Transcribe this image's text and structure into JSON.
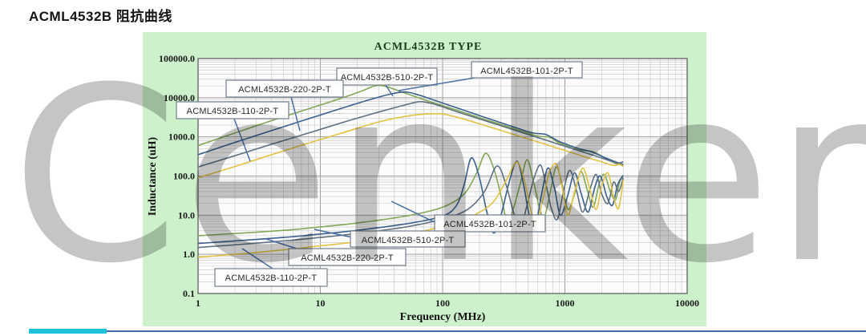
{
  "page": {
    "title": "ACML4532B 阻抗曲线"
  },
  "watermark": {
    "text": "Cenker"
  },
  "colors": {
    "panel_background": "#cdf2cb",
    "plot_background": "#fcfcfc",
    "footer_line": "#3d6ea6",
    "footer_accent": "#1ec1dc",
    "leader_line": "#4a6fa5"
  },
  "chart_data": {
    "type": "line",
    "title": "ACML4532B TYPE",
    "xlabel": "Frequency (MHz)",
    "ylabel": "Inductance (uH)",
    "grid": true,
    "legend_position": "none",
    "x_axis": {
      "scale": "log",
      "min": 1,
      "max": 10000,
      "ticks": [
        "1",
        "10",
        "100",
        "1000",
        "10000"
      ]
    },
    "y_axis": {
      "scale": "log",
      "min": 0.1,
      "max": 100000,
      "ticks": [
        "100000.0",
        "10000.0",
        "1000.0",
        "100.0",
        "10.0",
        "1.0",
        "0.1"
      ]
    },
    "callouts_top": [
      {
        "label": "ACML4532B-510-2P-T"
      },
      {
        "label": "ACML4532B-101-2P-T"
      },
      {
        "label": "ACML4532B-220-2P-T"
      },
      {
        "label": "ACML4532B-110-2P-T"
      }
    ],
    "callouts_bottom": [
      {
        "label": "ACML4532B-101-2P-T"
      },
      {
        "label": "ACML4532B-510-2P-T"
      },
      {
        "label": "ACML4532B-220-2P-T"
      },
      {
        "label": "ACML4532B-110-2P-T"
      }
    ],
    "series": [
      {
        "name": "ACML4532B-101-2P-T",
        "group": "upper",
        "color": "#84a757",
        "points": [
          [
            1,
            600
          ],
          [
            2,
            1250
          ],
          [
            4,
            2600
          ],
          [
            8,
            5200
          ],
          [
            15,
            9800
          ],
          [
            22,
            15000
          ],
          [
            28,
            20000
          ],
          [
            34,
            19500
          ],
          [
            45,
            14500
          ],
          [
            70,
            9000
          ],
          [
            100,
            6300
          ],
          [
            200,
            3100
          ],
          [
            400,
            1550
          ],
          [
            600,
            1050
          ],
          [
            750,
            980
          ],
          [
            900,
            700
          ],
          [
            1300,
            460
          ],
          [
            1700,
            420
          ],
          [
            2200,
            270
          ],
          [
            2600,
            210
          ],
          [
            3000,
            185
          ]
        ]
      },
      {
        "name": "ACML4532B-510-2P-T",
        "group": "upper",
        "color": "#3a5f8e",
        "points": [
          [
            1,
            350
          ],
          [
            2,
            720
          ],
          [
            4,
            1450
          ],
          [
            8,
            2900
          ],
          [
            15,
            5400
          ],
          [
            25,
            8800
          ],
          [
            38,
            12500
          ],
          [
            50,
            14000
          ],
          [
            65,
            11500
          ],
          [
            100,
            7300
          ],
          [
            200,
            3500
          ],
          [
            400,
            1700
          ],
          [
            550,
            1250
          ],
          [
            700,
            1150
          ],
          [
            900,
            760
          ],
          [
            1300,
            500
          ],
          [
            1600,
            430
          ],
          [
            2100,
            300
          ],
          [
            2600,
            230
          ],
          [
            3000,
            195
          ]
        ]
      },
      {
        "name": "ACML4532B-220-2P-T",
        "group": "upper",
        "color": "#5f7182",
        "points": [
          [
            1,
            170
          ],
          [
            2,
            330
          ],
          [
            4,
            650
          ],
          [
            8,
            1250
          ],
          [
            15,
            2300
          ],
          [
            30,
            4300
          ],
          [
            50,
            6600
          ],
          [
            65,
            7900
          ],
          [
            85,
            6900
          ],
          [
            130,
            4400
          ],
          [
            250,
            2300
          ],
          [
            500,
            1150
          ],
          [
            800,
            720
          ],
          [
            1200,
            480
          ],
          [
            1700,
            340
          ],
          [
            2200,
            260
          ],
          [
            2700,
            215
          ],
          [
            3000,
            230
          ]
        ]
      },
      {
        "name": "ACML4532B-110-2P-T",
        "group": "upper",
        "color": "#e2c345",
        "points": [
          [
            1,
            90
          ],
          [
            2,
            175
          ],
          [
            4,
            350
          ],
          [
            8,
            690
          ],
          [
            15,
            1250
          ],
          [
            30,
            2400
          ],
          [
            55,
            3500
          ],
          [
            90,
            3900
          ],
          [
            120,
            3400
          ],
          [
            200,
            2150
          ],
          [
            400,
            1100
          ],
          [
            700,
            640
          ],
          [
            1000,
            450
          ],
          [
            1500,
            300
          ],
          [
            2000,
            230
          ],
          [
            2500,
            185
          ],
          [
            2800,
            200
          ],
          [
            3000,
            175
          ]
        ]
      },
      {
        "name": "ACML4532B-101-2P-T",
        "group": "lower",
        "color": "#84a757",
        "points": [
          [
            1,
            3.0
          ],
          [
            2,
            3.4
          ],
          [
            5,
            4.1
          ],
          [
            10,
            5.0
          ],
          [
            20,
            6.3
          ],
          [
            50,
            9.5
          ],
          [
            100,
            16
          ],
          [
            150,
            35
          ],
          [
            190,
            120
          ],
          [
            225,
            380
          ],
          [
            265,
            140
          ],
          [
            305,
            25
          ],
          [
            340,
            6
          ],
          [
            380,
            15
          ],
          [
            440,
            80
          ],
          [
            490,
            260
          ],
          [
            550,
            80
          ],
          [
            620,
            15
          ],
          [
            680,
            9
          ],
          [
            760,
            40
          ],
          [
            850,
            170
          ],
          [
            950,
            60
          ],
          [
            1060,
            14
          ],
          [
            1200,
            35
          ],
          [
            1350,
            130
          ],
          [
            1520,
            45
          ],
          [
            1700,
            16
          ],
          [
            1900,
            60
          ],
          [
            2100,
            110
          ],
          [
            2350,
            40
          ],
          [
            2600,
            25
          ],
          [
            2800,
            70
          ],
          [
            3000,
            95
          ]
        ]
      },
      {
        "name": "ACML4532B-510-2P-T",
        "group": "lower",
        "color": "#3a5f8e",
        "points": [
          [
            1,
            1.9
          ],
          [
            2,
            2.2
          ],
          [
            5,
            2.7
          ],
          [
            10,
            3.3
          ],
          [
            20,
            4.1
          ],
          [
            50,
            6.0
          ],
          [
            100,
            9.5
          ],
          [
            130,
            18
          ],
          [
            150,
            60
          ],
          [
            172,
            290
          ],
          [
            200,
            90
          ],
          [
            230,
            12
          ],
          [
            262,
            3.5
          ],
          [
            300,
            10
          ],
          [
            350,
            70
          ],
          [
            405,
            240
          ],
          [
            455,
            70
          ],
          [
            510,
            10
          ],
          [
            565,
            4.2
          ],
          [
            640,
            30
          ],
          [
            725,
            160
          ],
          [
            820,
            50
          ],
          [
            920,
            10
          ],
          [
            1050,
            30
          ],
          [
            1200,
            120
          ],
          [
            1360,
            35
          ],
          [
            1550,
            12
          ],
          [
            1750,
            50
          ],
          [
            1950,
            100
          ],
          [
            2200,
            30
          ],
          [
            2450,
            18
          ],
          [
            2700,
            60
          ],
          [
            3000,
            105
          ]
        ]
      },
      {
        "name": "ACML4532B-220-2P-T",
        "group": "lower",
        "color": "#5f7182",
        "points": [
          [
            1,
            1.5
          ],
          [
            2,
            1.75
          ],
          [
            5,
            2.2
          ],
          [
            10,
            2.7
          ],
          [
            20,
            3.4
          ],
          [
            50,
            5.0
          ],
          [
            100,
            8.0
          ],
          [
            160,
            14
          ],
          [
            220,
            40
          ],
          [
            278,
            180
          ],
          [
            330,
            60
          ],
          [
            380,
            12
          ],
          [
            432,
            5
          ],
          [
            490,
            18
          ],
          [
            560,
            90
          ],
          [
            632,
            190
          ],
          [
            700,
            60
          ],
          [
            780,
            14
          ],
          [
            870,
            8
          ],
          [
            980,
            45
          ],
          [
            1100,
            140
          ],
          [
            1250,
            40
          ],
          [
            1400,
            12
          ],
          [
            1600,
            45
          ],
          [
            1800,
            110
          ],
          [
            2000,
            35
          ],
          [
            2250,
            20
          ],
          [
            2500,
            70
          ],
          [
            2750,
            40
          ],
          [
            3000,
            90
          ]
        ]
      },
      {
        "name": "ACML4532B-110-2P-T",
        "group": "lower",
        "color": "#e2c345",
        "points": [
          [
            1,
            0.85
          ],
          [
            2,
            1.0
          ],
          [
            5,
            1.3
          ],
          [
            10,
            1.65
          ],
          [
            20,
            2.1
          ],
          [
            50,
            3.2
          ],
          [
            100,
            5.2
          ],
          [
            180,
            10
          ],
          [
            260,
            22
          ],
          [
            340,
            90
          ],
          [
            405,
            230
          ],
          [
            465,
            80
          ],
          [
            520,
            16
          ],
          [
            580,
            6
          ],
          [
            660,
            25
          ],
          [
            750,
            130
          ],
          [
            855,
            200
          ],
          [
            950,
            50
          ],
          [
            1060,
            10
          ],
          [
            1200,
            40
          ],
          [
            1400,
            160
          ],
          [
            1600,
            45
          ],
          [
            1800,
            14
          ],
          [
            2000,
            55
          ],
          [
            2250,
            120
          ],
          [
            2500,
            30
          ],
          [
            2750,
            15
          ],
          [
            3000,
            80
          ]
        ]
      }
    ]
  }
}
